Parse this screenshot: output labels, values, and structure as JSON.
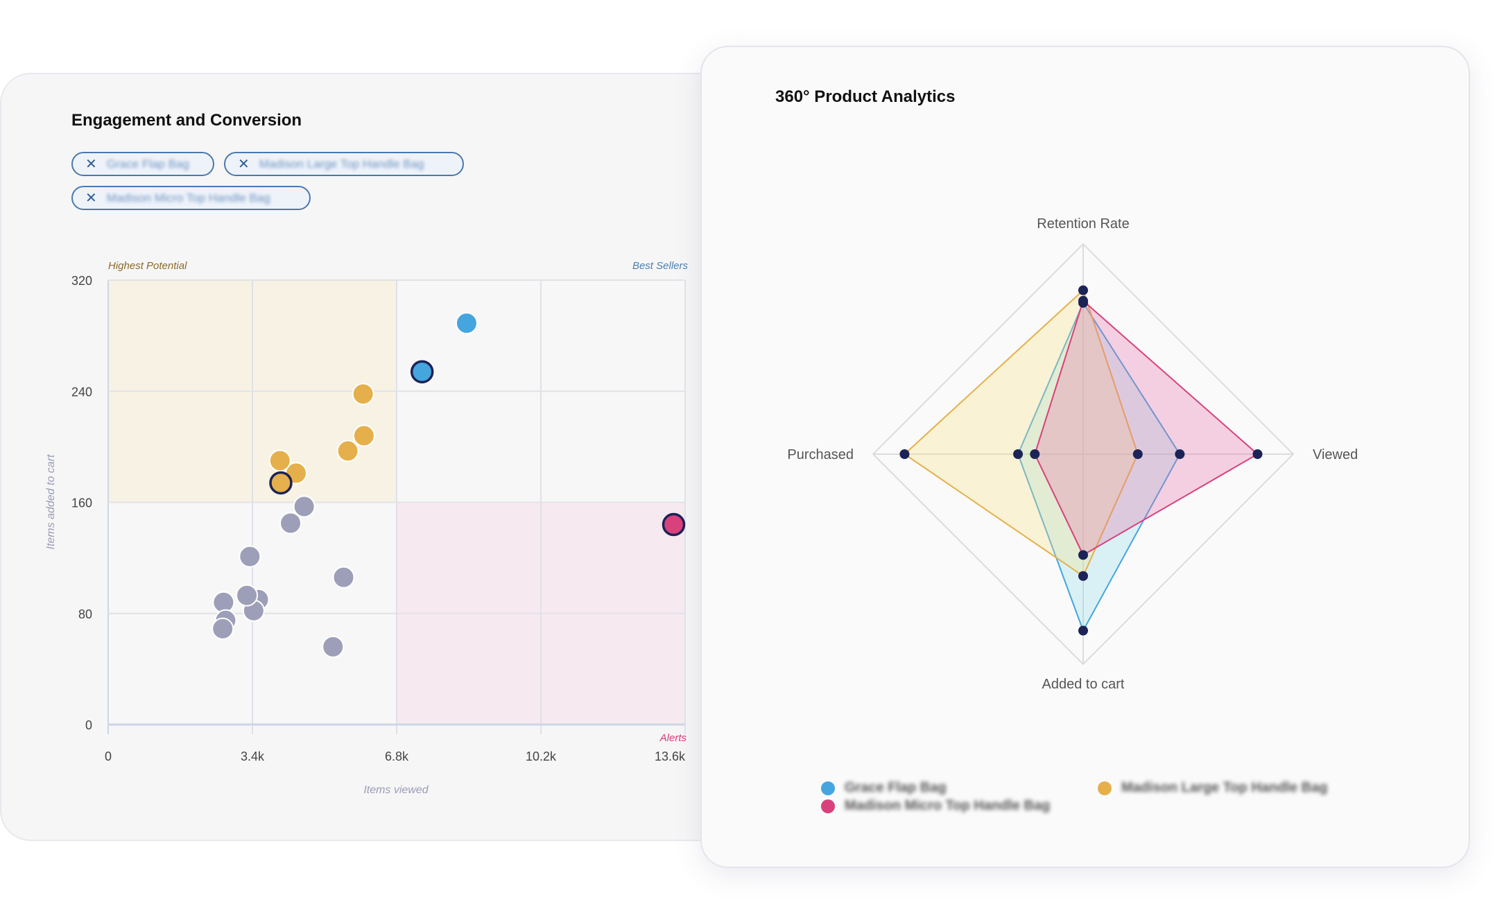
{
  "left": {
    "title": "Engagement and Conversion",
    "chips": [
      {
        "label": "Grace Flap Bag",
        "icon": "close-icon"
      },
      {
        "label": "Madison Large Top Handle Bag",
        "icon": "close-icon"
      },
      {
        "label": "Madison Micro Top Handle Bag",
        "icon": "close-icon"
      }
    ]
  },
  "right": {
    "title": "360° Product Analytics"
  },
  "chart_data": [
    {
      "type": "scatter",
      "xlabel": "Items viewed",
      "ylabel": "Items added to cart",
      "xlim": [
        0,
        13600
      ],
      "ylim": [
        0,
        320
      ],
      "xticks": [
        "0",
        "3.4k",
        "6.8k",
        "10.2k",
        "13.6k"
      ],
      "xtick_values": [
        0,
        3400,
        6800,
        10200,
        13600
      ],
      "yticks": [
        "0",
        "80",
        "160",
        "240",
        "320"
      ],
      "ytick_values": [
        0,
        80,
        160,
        240,
        320
      ],
      "grid": true,
      "quadrant_labels": {
        "top_left": "Highest Potential",
        "top_right": "Best Sellers",
        "bottom_right": "Alerts"
      },
      "quadrants": [
        {
          "x": [
            0,
            6800
          ],
          "y": [
            160,
            320
          ],
          "color": "#f7f2e3"
        },
        {
          "x": [
            6800,
            13600
          ],
          "y": [
            0,
            160
          ],
          "color": "#f6eaf0"
        }
      ],
      "colors": {
        "blue": "#45a5df",
        "yellow": "#e5b04b",
        "gray": "#9d9fb9",
        "pink": "#d9417c",
        "outline": "#1c2356"
      },
      "points": [
        {
          "x": 8450,
          "y": 289,
          "color": "blue",
          "highlight": false
        },
        {
          "x": 7400,
          "y": 254,
          "color": "blue",
          "highlight": true
        },
        {
          "x": 6010,
          "y": 238,
          "color": "yellow",
          "highlight": false
        },
        {
          "x": 6030,
          "y": 208,
          "color": "yellow",
          "highlight": false
        },
        {
          "x": 5650,
          "y": 197,
          "color": "yellow",
          "highlight": false
        },
        {
          "x": 4430,
          "y": 181,
          "color": "yellow",
          "highlight": false
        },
        {
          "x": 4050,
          "y": 190,
          "color": "yellow",
          "highlight": false
        },
        {
          "x": 4070,
          "y": 174,
          "color": "yellow",
          "highlight": true
        },
        {
          "x": 4620,
          "y": 157,
          "color": "gray",
          "highlight": false
        },
        {
          "x": 4300,
          "y": 145,
          "color": "gray",
          "highlight": false
        },
        {
          "x": 3340,
          "y": 121,
          "color": "gray",
          "highlight": false
        },
        {
          "x": 5550,
          "y": 106,
          "color": "gray",
          "highlight": false
        },
        {
          "x": 3540,
          "y": 90,
          "color": "gray",
          "highlight": false
        },
        {
          "x": 2720,
          "y": 88,
          "color": "gray",
          "highlight": false
        },
        {
          "x": 3430,
          "y": 82,
          "color": "gray",
          "highlight": false
        },
        {
          "x": 3270,
          "y": 93,
          "color": "gray",
          "highlight": false
        },
        {
          "x": 2770,
          "y": 75,
          "color": "gray",
          "highlight": false
        },
        {
          "x": 2700,
          "y": 69,
          "color": "gray",
          "highlight": false
        },
        {
          "x": 5300,
          "y": 56,
          "color": "gray",
          "highlight": false
        },
        {
          "x": 13330,
          "y": 144,
          "color": "pink",
          "highlight": true
        }
      ]
    },
    {
      "type": "radar",
      "axes": [
        "Retention Rate",
        "Viewed",
        "Added to cart",
        "Purchased"
      ],
      "range": [
        0,
        100
      ],
      "legend_placement": "bottom",
      "series": [
        {
          "name": "Grace Flap Bag",
          "color": "#45a5df",
          "fill": "rgba(120,215,230,0.25)",
          "values": [
            72,
            46,
            84,
            31
          ]
        },
        {
          "name": "Madison Large Top Handle Bag",
          "color": "#e5b04b",
          "fill": "rgba(250,225,130,0.3)",
          "values": [
            78,
            26,
            58,
            85
          ]
        },
        {
          "name": "Madison Micro Top Handle Bag",
          "color": "#d9417c",
          "fill": "rgba(230,110,170,0.3)",
          "values": [
            73,
            83,
            48,
            23
          ]
        }
      ],
      "marker_color": "#1c2356"
    }
  ]
}
